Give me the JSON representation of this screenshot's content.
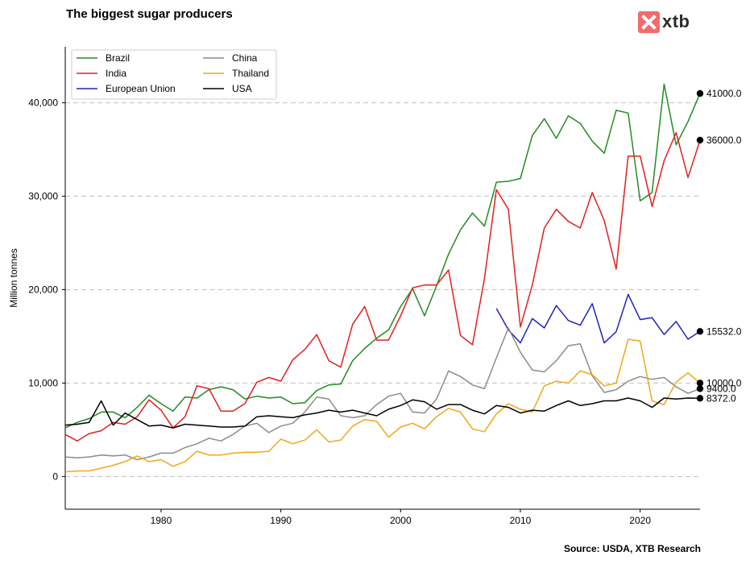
{
  "title": "The biggest sugar producers",
  "logo_text": "xtb",
  "source": "Source: USDA, XTB Research",
  "chart_data": {
    "type": "line",
    "ylabel": "Million tonnes",
    "xlabel": "",
    "xlim": [
      1972,
      2025
    ],
    "ylim": [
      -3500,
      46000
    ],
    "x_ticks": [
      1980,
      1990,
      2000,
      2010,
      2020
    ],
    "y_ticks": [
      0,
      10000,
      20000,
      30000,
      40000
    ],
    "y_tick_labels": [
      "0",
      "10,000",
      "20,000",
      "30,000",
      "40,000"
    ],
    "grid": "horizontal dashed",
    "legend_position": "top-left",
    "series": [
      {
        "name": "Brazil",
        "color": "#228B22",
        "x_start": 1972,
        "values": [
          5200,
          5800,
          6200,
          6900,
          6900,
          6300,
          7400,
          8700,
          7800,
          7000,
          8500,
          8400,
          9300,
          9600,
          9300,
          8300,
          8600,
          8400,
          8500,
          7800,
          7900,
          9200,
          9800,
          9900,
          12400,
          13700,
          14800,
          15700,
          18200,
          20100,
          17200,
          20400,
          23800,
          26400,
          28200,
          26800,
          31500,
          31600,
          31900,
          36500,
          38300,
          36200,
          38600,
          37800,
          35900,
          34600,
          39200,
          38900,
          29500,
          30400,
          42000,
          35500,
          38000,
          41000
        ]
      },
      {
        "name": "India",
        "color": "#e02020",
        "x_start": 1972,
        "values": [
          4500,
          3800,
          4600,
          4900,
          5800,
          5600,
          6400,
          8200,
          7100,
          5200,
          6400,
          9700,
          9400,
          7000,
          7000,
          7800,
          10100,
          10600,
          10200,
          12500,
          13600,
          15200,
          12400,
          11700,
          16300,
          18200,
          14600,
          14600,
          17200,
          20200,
          20500,
          20500,
          22100,
          15100,
          14100,
          21200,
          30700,
          28600,
          16000,
          20500,
          26600,
          28600,
          27300,
          26600,
          30400,
          27400,
          22200,
          34300,
          34300,
          28900,
          33800,
          36800,
          32000,
          36000
        ]
      },
      {
        "name": "European Union",
        "color": "#2222bb",
        "x_start": 2008,
        "values": [
          18000,
          15700,
          14300,
          16900,
          15900,
          18300,
          16700,
          16200,
          18500,
          14300,
          15500,
          19500,
          16800,
          17000,
          15200,
          16600,
          14700,
          15532
        ]
      },
      {
        "name": "China",
        "color": "#8c8c8c",
        "x_start": 1972,
        "values": [
          2100,
          2000,
          2100,
          2300,
          2200,
          2300,
          1800,
          2100,
          2500,
          2500,
          3100,
          3500,
          4100,
          3800,
          4500,
          5400,
          5700,
          4700,
          5400,
          5700,
          6900,
          8500,
          8300,
          6500,
          6300,
          6500,
          7700,
          8600,
          8900,
          6900,
          6800,
          8300,
          11300,
          10700,
          9800,
          9400,
          12700,
          15900,
          13300,
          11400,
          11200,
          12400,
          14000,
          14200,
          10800,
          9000,
          9300,
          10200,
          10700,
          10400,
          10600,
          9600,
          8900,
          9400
        ]
      },
      {
        "name": "Thailand",
        "color": "#f0a818",
        "x_start": 1972,
        "values": [
          500,
          600,
          600,
          900,
          1200,
          1600,
          2200,
          1600,
          1800,
          1100,
          1600,
          2700,
          2300,
          2300,
          2500,
          2600,
          2600,
          2700,
          4000,
          3500,
          3900,
          5000,
          3700,
          3900,
          5400,
          6100,
          5900,
          4200,
          5300,
          5700,
          5100,
          6400,
          7300,
          6900,
          5100,
          4800,
          6700,
          7800,
          7200,
          6900,
          9700,
          10200,
          10000,
          11300,
          10900,
          9700,
          10000,
          14700,
          14500,
          8100,
          7700,
          10100,
          11100,
          10000
        ]
      },
      {
        "name": "USA",
        "color": "#000000",
        "x_start": 1972,
        "values": [
          5500,
          5600,
          5800,
          8100,
          5500,
          6800,
          6100,
          5400,
          5500,
          5200,
          5600,
          5500,
          5400,
          5300,
          5300,
          5400,
          6400,
          6500,
          6400,
          6300,
          6600,
          6800,
          7100,
          6900,
          7100,
          6800,
          6500,
          7200,
          7600,
          8200,
          8000,
          7200,
          7700,
          7700,
          7100,
          6700,
          7600,
          7400,
          6800,
          7100,
          7000,
          7600,
          8100,
          7600,
          7800,
          8100,
          8100,
          8400,
          8100,
          7400,
          8400,
          8300,
          8400,
          8372
        ]
      }
    ],
    "end_labels": [
      {
        "series": "Brazil",
        "x": 2025,
        "y": 41000,
        "label": "41000.0"
      },
      {
        "series": "India",
        "x": 2025,
        "y": 36000,
        "label": "36000.0"
      },
      {
        "series": "European Union",
        "x": 2025,
        "y": 15532,
        "label": "15532.0"
      },
      {
        "series": "Thailand",
        "x": 2025,
        "y": 10000,
        "label": "10000.0"
      },
      {
        "series": "China",
        "x": 2025,
        "y": 9400,
        "label": "9400.0"
      },
      {
        "series": "USA",
        "x": 2025,
        "y": 8372,
        "label": "8372.0"
      }
    ]
  }
}
